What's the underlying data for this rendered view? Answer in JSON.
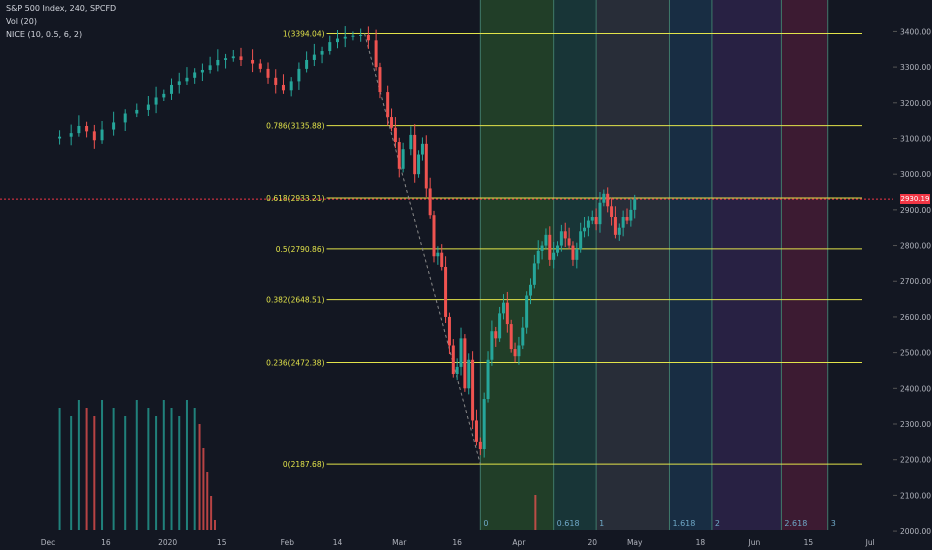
{
  "header": {
    "symbol": "S&P 500 Index, 240, SPCFD",
    "indicator1": "Vol (20)",
    "indicator2": "NICE (10, 0.5, 6, 2)"
  },
  "current_price_label": "2930.19",
  "colors": {
    "background": "#131722",
    "candle_up": "#26a69a",
    "candle_down": "#ef5350",
    "fib_line": "#e2e34a",
    "fib_label": "#e2e34a",
    "current_price_line": "#f23645",
    "time_zone_line": "#4a7f9e"
  },
  "chart_data": {
    "type": "candlestick",
    "ylim": [
      1975,
      3460
    ],
    "y_ticks": [
      "3400.00",
      "3300.00",
      "3200.00",
      "3100.00",
      "3000.00",
      "2900.00",
      "2800.00",
      "2700.00",
      "2600.00",
      "2500.00",
      "2400.00",
      "2300.00",
      "2200.00",
      "2100.00",
      "2000.00"
    ],
    "y_tick_values": [
      3400,
      3300,
      3200,
      3100,
      3000,
      2900,
      2800,
      2700,
      2600,
      2500,
      2400,
      2300,
      2200,
      2100,
      2000
    ],
    "x_ticks": [
      {
        "label": "Dec",
        "day": 0
      },
      {
        "label": "16",
        "day": 15
      },
      {
        "label": "2020",
        "day": 31
      },
      {
        "label": "15",
        "day": 45
      },
      {
        "label": "Feb",
        "day": 62
      },
      {
        "label": "14",
        "day": 75
      },
      {
        "label": "Mar",
        "day": 91
      },
      {
        "label": "16",
        "day": 106
      },
      {
        "label": "Apr",
        "day": 122
      },
      {
        "label": "20",
        "day": 141
      },
      {
        "label": "May",
        "day": 152
      },
      {
        "label": "18",
        "day": 169
      },
      {
        "label": "Jun",
        "day": 183
      },
      {
        "label": "15",
        "day": 197
      },
      {
        "label": "Jul",
        "day": 213
      }
    ],
    "fib_retracements": [
      {
        "label": "1(3394.04)",
        "value": 3394.04
      },
      {
        "label": "0.786(3135.88)",
        "value": 3135.88
      },
      {
        "label": "0.618(2933.21)",
        "value": 2933.21
      },
      {
        "label": "0.5(2790.86)",
        "value": 2790.86
      },
      {
        "label": "0.382(2648.51)",
        "value": 2648.51
      },
      {
        "label": "0.236(2472.38)",
        "value": 2472.38
      },
      {
        "label": "0(2187.68)",
        "value": 2187.68
      }
    ],
    "fib_time_zones": [
      {
        "label": "0",
        "day": 112
      },
      {
        "label": "",
        "day": 131
      },
      {
        "label": "0.618",
        "day": 131
      },
      {
        "label": "1",
        "day": 142
      },
      {
        "label": "1.618",
        "day": 161
      },
      {
        "label": "2",
        "day": 172
      },
      {
        "label": "",
        "day": 190
      },
      {
        "label": "2.618",
        "day": 190
      },
      {
        "label": "3",
        "day": 202
      }
    ],
    "time_zone_bands": [
      {
        "start": 112,
        "end": 131,
        "color": "#2e5e2e"
      },
      {
        "start": 131,
        "end": 142,
        "color": "#1e4e48"
      },
      {
        "start": 142,
        "end": 161,
        "color": "#3a3f4a"
      },
      {
        "start": 161,
        "end": 172,
        "color": "#1e3f5e"
      },
      {
        "start": 172,
        "end": 190,
        "color": "#3a2a5e"
      },
      {
        "start": 190,
        "end": 202,
        "color": "#5e1f3f"
      }
    ],
    "fib_trend_line": [
      {
        "day": 82,
        "value": 3394.04
      },
      {
        "day": 112,
        "value": 2187.68
      }
    ],
    "current_price": 2930.19,
    "price_path": [
      [
        0,
        3100
      ],
      [
        3,
        3105
      ],
      [
        6,
        3115
      ],
      [
        8,
        3135
      ],
      [
        10,
        3120
      ],
      [
        12,
        3095
      ],
      [
        14,
        3125
      ],
      [
        17,
        3145
      ],
      [
        20,
        3170
      ],
      [
        23,
        3180
      ],
      [
        26,
        3195
      ],
      [
        28,
        3215
      ],
      [
        30,
        3225
      ],
      [
        32,
        3250
      ],
      [
        34,
        3260
      ],
      [
        36,
        3270
      ],
      [
        38,
        3285
      ],
      [
        40,
        3292
      ],
      [
        42,
        3305
      ],
      [
        44,
        3320
      ],
      [
        46,
        3325
      ],
      [
        48,
        3330
      ],
      [
        50,
        3320
      ],
      [
        53,
        3310
      ],
      [
        55,
        3295
      ],
      [
        57,
        3270
      ],
      [
        59,
        3250
      ],
      [
        61,
        3235
      ],
      [
        63,
        3260
      ],
      [
        65,
        3295
      ],
      [
        67,
        3320
      ],
      [
        69,
        3335
      ],
      [
        71,
        3345
      ],
      [
        73,
        3370
      ],
      [
        75,
        3380
      ],
      [
        77,
        3385
      ],
      [
        79,
        3388
      ],
      [
        81,
        3390
      ],
      [
        83,
        3375
      ],
      [
        85,
        3300
      ],
      [
        86,
        3230
      ],
      [
        88,
        3160
      ],
      [
        89,
        3130
      ],
      [
        90,
        3090
      ],
      [
        91,
        3015
      ],
      [
        92,
        3070
      ],
      [
        94,
        3110
      ],
      [
        95,
        3000
      ],
      [
        96,
        3055
      ],
      [
        97,
        3085
      ],
      [
        98,
        2960
      ],
      [
        99,
        2885
      ],
      [
        100,
        2770
      ],
      [
        101,
        2780
      ],
      [
        102,
        2740
      ],
      [
        103,
        2600
      ],
      [
        104,
        2520
      ],
      [
        105,
        2440
      ],
      [
        106,
        2460
      ],
      [
        107,
        2540
      ],
      [
        108,
        2400
      ],
      [
        109,
        2480
      ],
      [
        110,
        2310
      ],
      [
        111,
        2250
      ],
      [
        112,
        2230
      ],
      [
        113,
        2370
      ],
      [
        114,
        2480
      ],
      [
        115,
        2560
      ],
      [
        116,
        2540
      ],
      [
        117,
        2610
      ],
      [
        118,
        2640
      ],
      [
        119,
        2580
      ],
      [
        120,
        2510
      ],
      [
        121,
        2490
      ],
      [
        122,
        2520
      ],
      [
        123,
        2570
      ],
      [
        124,
        2660
      ],
      [
        125,
        2690
      ],
      [
        126,
        2750
      ],
      [
        127,
        2785
      ],
      [
        128,
        2800
      ],
      [
        129,
        2830
      ],
      [
        130,
        2760
      ],
      [
        131,
        2780
      ],
      [
        132,
        2800
      ],
      [
        133,
        2840
      ],
      [
        134,
        2820
      ],
      [
        135,
        2800
      ],
      [
        136,
        2760
      ],
      [
        137,
        2790
      ],
      [
        138,
        2840
      ],
      [
        139,
        2850
      ],
      [
        140,
        2870
      ],
      [
        141,
        2880
      ],
      [
        142,
        2860
      ],
      [
        143,
        2920
      ],
      [
        144,
        2945
      ],
      [
        145,
        2910
      ],
      [
        146,
        2880
      ],
      [
        147,
        2830
      ],
      [
        148,
        2850
      ],
      [
        149,
        2880
      ],
      [
        150,
        2870
      ],
      [
        151,
        2900
      ],
      [
        152,
        2930
      ]
    ],
    "volume_ylim": [
      0,
      100
    ]
  }
}
